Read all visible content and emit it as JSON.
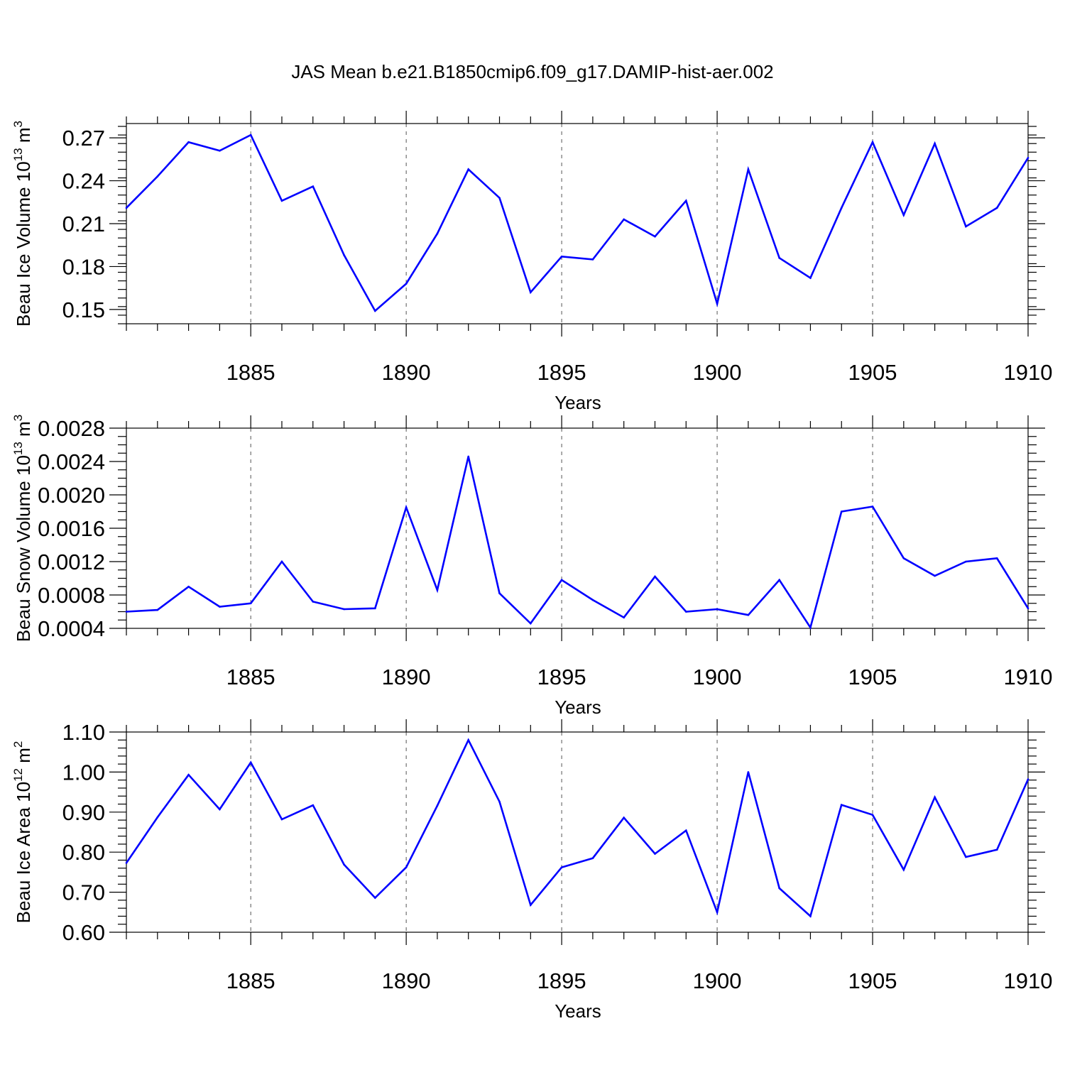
{
  "title": "JAS Mean b.e21.B1850cmip6.f09_g17.DAMIP-hist-aer.002",
  "chart_data": [
    {
      "type": "line",
      "id": "ice-volume",
      "xlabel": "Years",
      "ylabel": "Beau Ice Volume 10",
      "ylabel_sup": "13",
      "ylabel_unit": " m",
      "ylabel_unit_sup": "3",
      "xlim": [
        1881,
        1910
      ],
      "ylim": [
        0.14,
        0.28
      ],
      "yticks": [
        0.15,
        0.18,
        0.21,
        0.24,
        0.27
      ],
      "ytick_labels": [
        "0.15",
        "0.18",
        "0.21",
        "0.24",
        "0.27"
      ],
      "yminor_step": 0.006,
      "xticks": [
        1885,
        1890,
        1895,
        1900,
        1905,
        1910
      ],
      "xtick_labels": [
        "1885",
        "1890",
        "1895",
        "1900",
        "1905",
        "1910"
      ],
      "x": [
        1881,
        1882,
        1883,
        1884,
        1885,
        1886,
        1887,
        1888,
        1889,
        1890,
        1891,
        1892,
        1893,
        1894,
        1895,
        1896,
        1897,
        1898,
        1899,
        1900,
        1901,
        1902,
        1903,
        1904,
        1905,
        1906,
        1907,
        1908,
        1909,
        1910
      ],
      "values": [
        0.221,
        0.243,
        0.267,
        0.261,
        0.272,
        0.226,
        0.236,
        0.188,
        0.149,
        0.168,
        0.203,
        0.248,
        0.228,
        0.162,
        0.187,
        0.185,
        0.213,
        0.201,
        0.226,
        0.154,
        0.248,
        0.186,
        0.172,
        0.221,
        0.267,
        0.216,
        0.266,
        0.208,
        0.221,
        0.256
      ],
      "color": "#0000ff"
    },
    {
      "type": "line",
      "id": "snow-volume",
      "xlabel": "Years",
      "ylabel": "Beau Snow Volume 10",
      "ylabel_sup": "13",
      "ylabel_unit": " m",
      "ylabel_unit_sup": "3",
      "xlim": [
        1881,
        1910
      ],
      "ylim": [
        0.0004,
        0.0028
      ],
      "yticks": [
        0.0004,
        0.0008,
        0.0012,
        0.0016,
        0.002,
        0.0024,
        0.0028
      ],
      "ytick_labels": [
        "0.0004",
        "0.0008",
        "0.0012",
        "0.0016",
        "0.0020",
        "0.0024",
        "0.0028"
      ],
      "yminor_step": 0.0001,
      "xticks": [
        1885,
        1890,
        1895,
        1900,
        1905,
        1910
      ],
      "xtick_labels": [
        "1885",
        "1890",
        "1895",
        "1900",
        "1905",
        "1910"
      ],
      "x": [
        1881,
        1882,
        1883,
        1884,
        1885,
        1886,
        1887,
        1888,
        1889,
        1890,
        1891,
        1892,
        1893,
        1894,
        1895,
        1896,
        1897,
        1898,
        1899,
        1900,
        1901,
        1902,
        1903,
        1904,
        1905,
        1906,
        1907,
        1908,
        1909,
        1910
      ],
      "values": [
        0.0006,
        0.00062,
        0.0009,
        0.00066,
        0.0007,
        0.0012,
        0.00072,
        0.00063,
        0.00064,
        0.00185,
        0.00086,
        0.00246,
        0.00082,
        0.00046,
        0.00098,
        0.00074,
        0.00053,
        0.00102,
        0.0006,
        0.00063,
        0.00056,
        0.00098,
        0.00041,
        0.0018,
        0.00186,
        0.00124,
        0.00103,
        0.0012,
        0.00124,
        0.00064
      ],
      "color": "#0000ff"
    },
    {
      "type": "line",
      "id": "ice-area",
      "xlabel": "Years",
      "ylabel": "Beau Ice Area 10",
      "ylabel_sup": "12",
      "ylabel_unit": " m",
      "ylabel_unit_sup": "2",
      "xlim": [
        1881,
        1910
      ],
      "ylim": [
        0.6,
        1.1
      ],
      "yticks": [
        0.6,
        0.7,
        0.8,
        0.9,
        1.0,
        1.1
      ],
      "ytick_labels": [
        "0.60",
        "0.70",
        "0.80",
        "0.90",
        "1.00",
        "1.10"
      ],
      "yminor_step": 0.02,
      "xticks": [
        1885,
        1890,
        1895,
        1900,
        1905,
        1910
      ],
      "xtick_labels": [
        "1885",
        "1890",
        "1895",
        "1900",
        "1905",
        "1910"
      ],
      "x": [
        1881,
        1882,
        1883,
        1884,
        1885,
        1886,
        1887,
        1888,
        1889,
        1890,
        1891,
        1892,
        1893,
        1894,
        1895,
        1896,
        1897,
        1898,
        1899,
        1900,
        1901,
        1902,
        1903,
        1904,
        1905,
        1906,
        1907,
        1908,
        1909,
        1910
      ],
      "values": [
        0.773,
        0.887,
        0.993,
        0.907,
        1.024,
        0.882,
        0.917,
        0.769,
        0.686,
        0.762,
        0.916,
        1.08,
        0.926,
        0.668,
        0.762,
        0.785,
        0.886,
        0.796,
        0.854,
        0.65,
        1.0,
        0.71,
        0.64,
        0.918,
        0.893,
        0.756,
        0.937,
        0.788,
        0.806,
        0.982
      ],
      "color": "#0000ff"
    }
  ]
}
